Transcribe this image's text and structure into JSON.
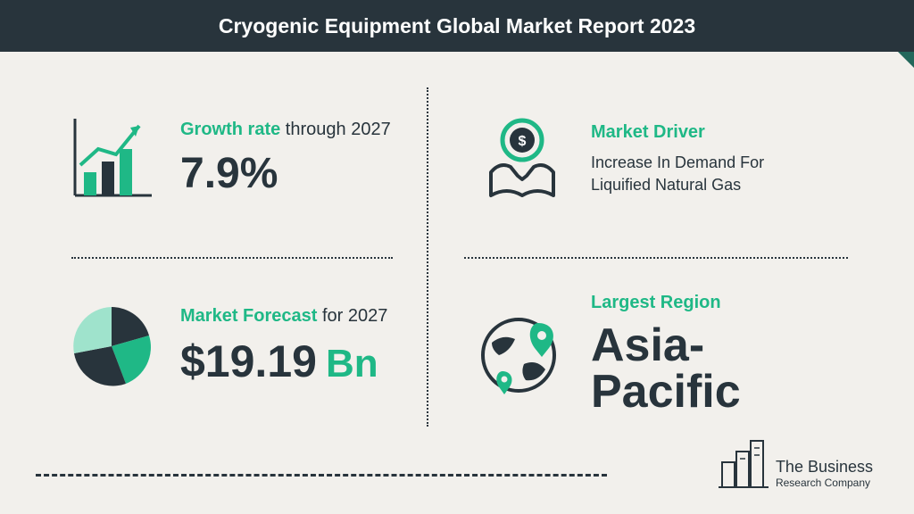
{
  "header": {
    "title": "Cryogenic Equipment Global Market Report 2023",
    "bg_color": "#28343c",
    "text_color": "#ffffff",
    "accent_color": "#23675b"
  },
  "colors": {
    "accent": "#1fb886",
    "dark": "#28343c",
    "bg": "#f2f0ec"
  },
  "growth": {
    "label_accent": "Growth rate",
    "label_muted": " through 2027",
    "value": "7.9%",
    "icon": "growth-chart"
  },
  "driver": {
    "label": "Market Driver",
    "text": "Increase In Demand For Liquified Natural Gas",
    "icon": "hands-dollar"
  },
  "forecast": {
    "label_accent": "Market Forecast",
    "label_muted": " for 2027",
    "value": "$19.19",
    "unit": "Bn",
    "icon": "pie"
  },
  "region": {
    "label": "Largest Region",
    "value": "Asia-Pacific",
    "icon": "globe-pin"
  },
  "logo": {
    "line1": "The Business",
    "line2": "Research Company"
  }
}
